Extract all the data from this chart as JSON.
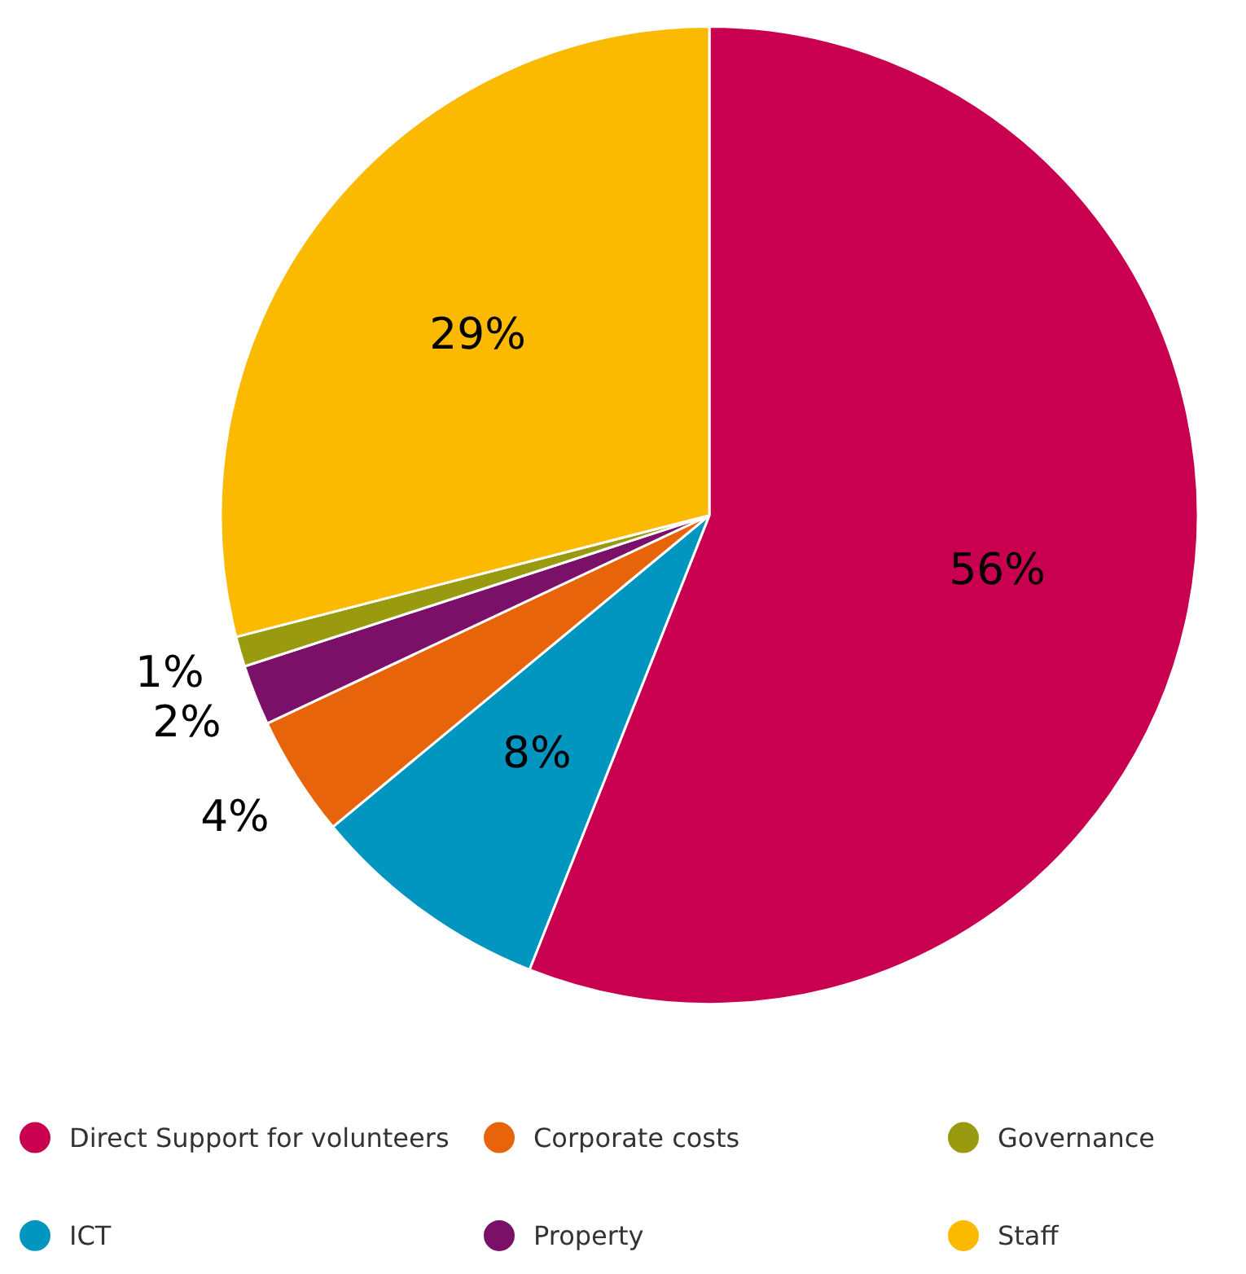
{
  "chart_data": {
    "type": "pie",
    "categories": [
      "Direct Support for volunteers",
      "ICT",
      "Corporate costs",
      "Property",
      "Governance",
      "Staff"
    ],
    "values": [
      56,
      8,
      4,
      2,
      1,
      29
    ],
    "value_labels": [
      "56%",
      "8%",
      "4%",
      "2%",
      "1%",
      "29%"
    ],
    "colors": [
      "#c8004f",
      "#0096c0",
      "#e8640a",
      "#7b1068",
      "#9a9a10",
      "#fbb900"
    ],
    "legend": "bottom"
  }
}
